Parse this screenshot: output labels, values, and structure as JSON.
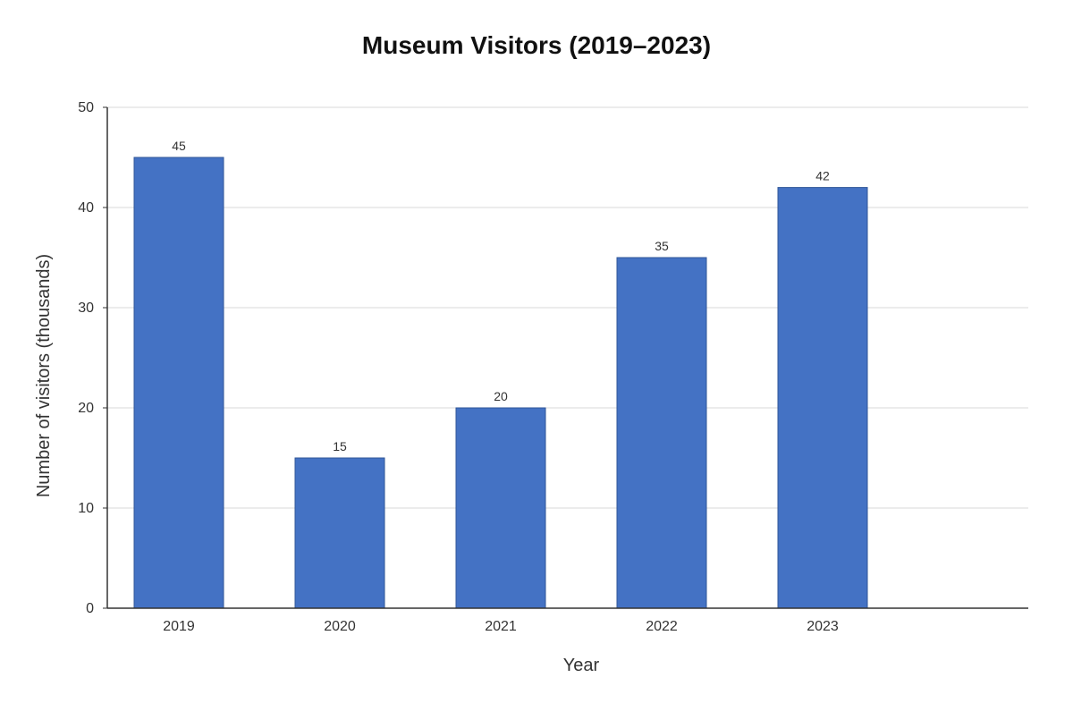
{
  "chart_data": {
    "type": "bar",
    "title": "Museum Visitors (2019–2023)",
    "xlabel": "Year",
    "ylabel": "Number of visitors (thousands)",
    "categories": [
      "2019",
      "2020",
      "2021",
      "2022",
      "2023"
    ],
    "values": [
      45,
      15,
      20,
      35,
      42
    ],
    "data_labels": [
      "45",
      "15",
      "20",
      "35",
      "42"
    ],
    "ylim": [
      0,
      50
    ],
    "yticks": [
      0,
      10,
      20,
      30,
      40,
      50
    ],
    "ytick_labels": [
      "0",
      "10",
      "20",
      "30",
      "40",
      "50"
    ],
    "grid": true,
    "legend": "none",
    "colors": {
      "bar_fill": "#4472C4",
      "bar_stroke": "#2F5597",
      "grid": "#D9D9D9",
      "axis": "#333333"
    }
  }
}
